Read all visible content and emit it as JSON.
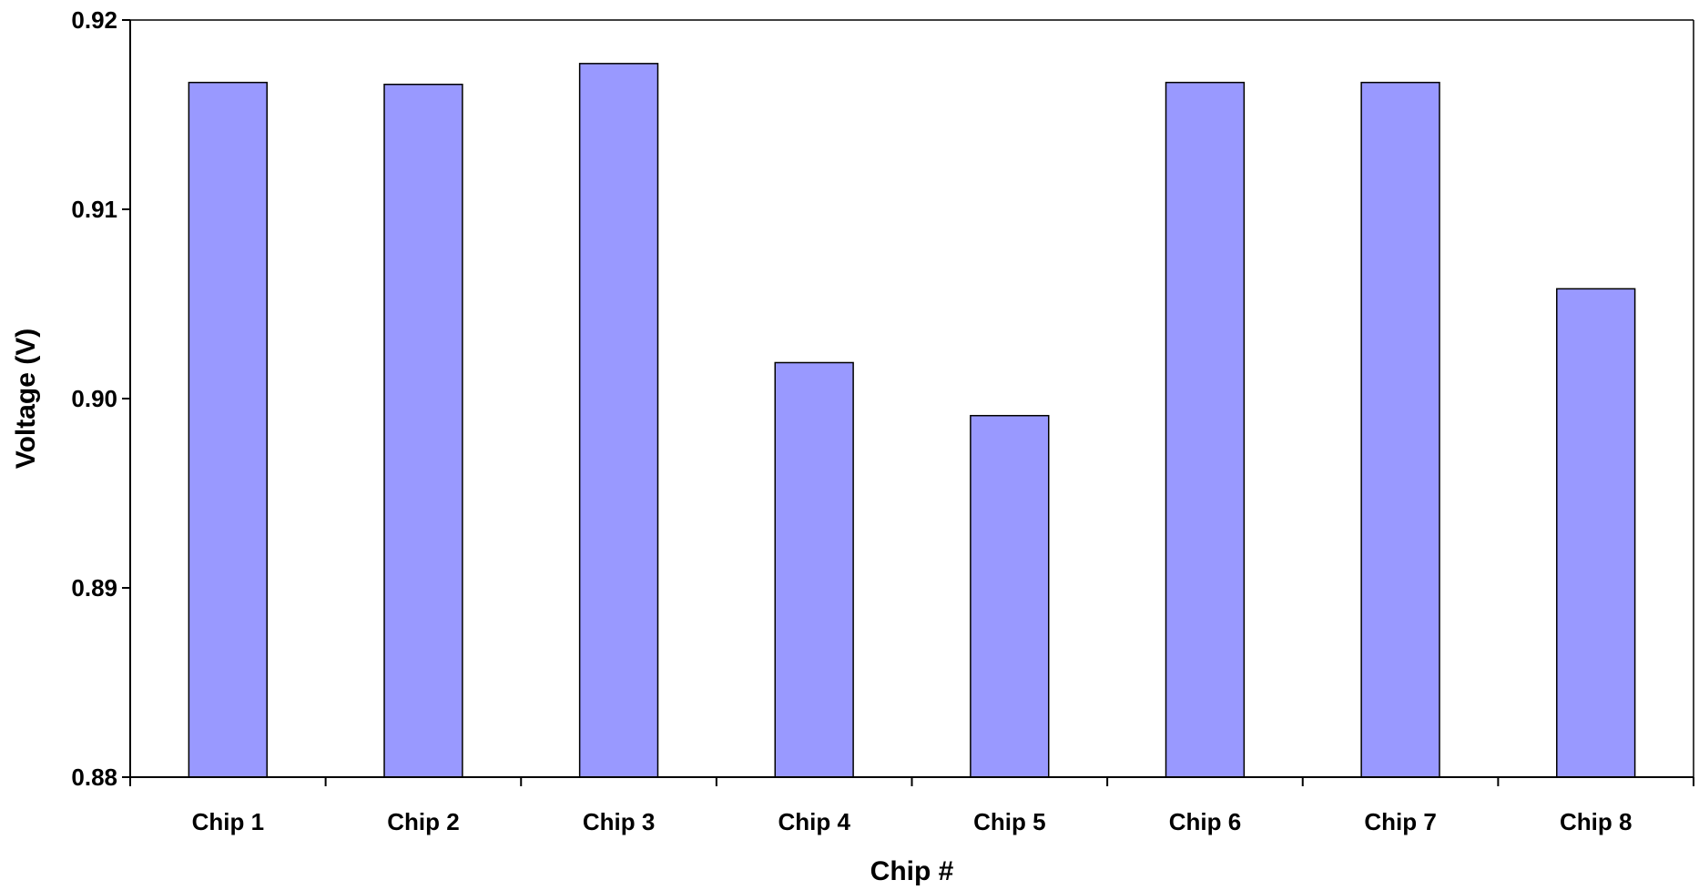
{
  "chart_data": {
    "type": "bar",
    "title": "",
    "xlabel": "Chip #",
    "ylabel": "Voltage (V)",
    "categories": [
      "Chip 1",
      "Chip 2",
      "Chip 3",
      "Chip 4",
      "Chip 5",
      "Chip 6",
      "Chip 7",
      "Chip 8"
    ],
    "values": [
      0.9167,
      0.9166,
      0.9177,
      0.9019,
      0.8991,
      0.9167,
      0.9167,
      0.9058
    ],
    "ylim": [
      0.88,
      0.92
    ],
    "yticks": [
      0.88,
      0.89,
      0.9,
      0.91,
      0.92
    ],
    "ytick_labels": [
      "0.88",
      "0.89",
      "0.90",
      "0.91",
      "0.92"
    ],
    "grid": false,
    "legend": "none",
    "colors": {
      "bar_fill": "#9999ff",
      "bar_stroke": "#000000",
      "axis": "#000000",
      "background": "#ffffff"
    }
  }
}
